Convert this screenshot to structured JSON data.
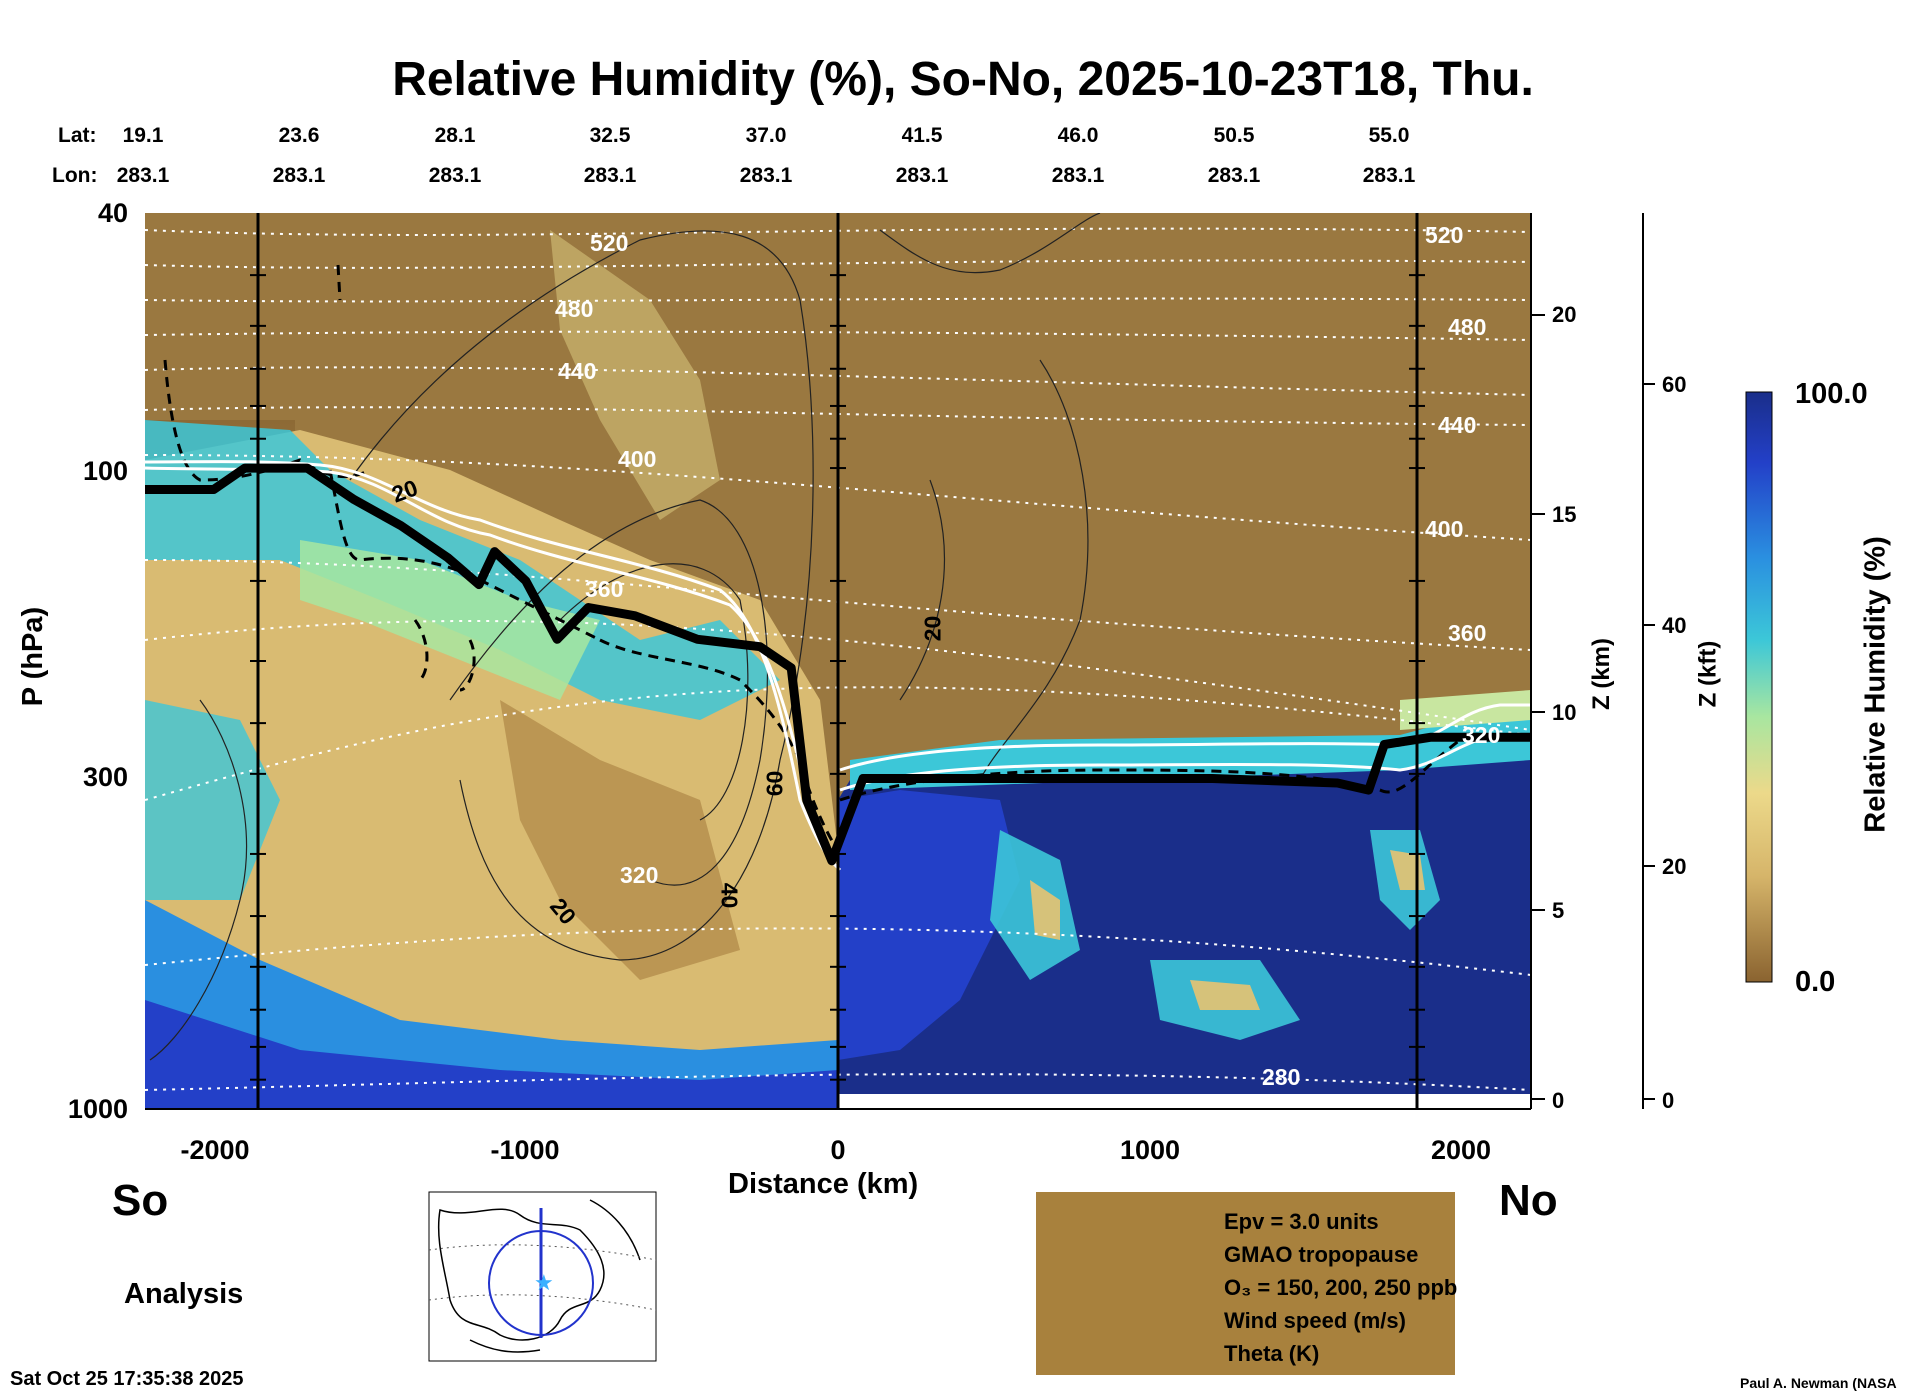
{
  "title": "Relative Humidity (%), So-No, 2025-10-23T18, Thu.",
  "lat_label": "Lat:",
  "lon_label": "Lon:",
  "lats": [
    "19.1",
    "23.6",
    "28.1",
    "32.5",
    "37.0",
    "41.5",
    "46.0",
    "50.5",
    "55.0"
  ],
  "lons": [
    "283.1",
    "283.1",
    "283.1",
    "283.1",
    "283.1",
    "283.1",
    "283.1",
    "283.1",
    "283.1"
  ],
  "direction_left": "So",
  "direction_right": "No",
  "analysis_label": "Analysis",
  "footer_timestamp": "Sat Oct 25 17:35:38 2025",
  "credit": "Paul A. Newman (NASA",
  "colorbar": {
    "title": "Relative Humidity (%)",
    "max_label": "100.0",
    "min_label": "0.0",
    "colors": [
      "#1a2e8a",
      "#2340c8",
      "#2a8fe0",
      "#3cc7d8",
      "#a8e6a0",
      "#ecd98a",
      "#d6b56a",
      "#a8813d",
      "#8a6330"
    ]
  },
  "legend": [
    {
      "label": "Epv = 3.0 units",
      "style": "dashed"
    },
    {
      "label": "GMAO tropopause",
      "style": "thick"
    },
    {
      "label": "O₃ = 150, 200, 250 ppb",
      "style": "white"
    },
    {
      "label": "Wind speed (m/s)",
      "style": "thin"
    },
    {
      "label": "Theta (K)",
      "style": "dotted"
    }
  ],
  "chart_data": {
    "type": "heatmap",
    "title": "Relative Humidity (%), So-No, 2025-10-23T18, Thu.",
    "xlabel": "Distance (km)",
    "ylabel": "P (hPa)",
    "xlim": [
      -2220,
      2220
    ],
    "ylim": [
      1000,
      40
    ],
    "y_scale": "log",
    "x_ticks": [
      -2000,
      -1000,
      0,
      1000,
      2000
    ],
    "x_tick_labels": [
      "-2000",
      "-1000",
      "0",
      "1000",
      "2000"
    ],
    "y_ticks": [
      40,
      100,
      300,
      1000
    ],
    "y_tick_labels": [
      "40",
      "100",
      "300",
      "1000"
    ],
    "z_km_label": "Z (km)",
    "z_km_ticks": [
      "20",
      "15",
      "10",
      "5",
      "0"
    ],
    "z_kft_label": "Z (kft)",
    "z_kft_ticks": [
      "60",
      "40",
      "20",
      "0"
    ],
    "theta_contour_labels": [
      "520",
      "480",
      "440",
      "400",
      "360",
      "320",
      "280",
      "520",
      "480",
      "440",
      "400",
      "360",
      "320"
    ],
    "wind_contour_labels": [
      "20",
      "20",
      "20",
      "40",
      "60"
    ],
    "tropopause": [
      {
        "x": -2220,
        "p": 108
      },
      {
        "x": -2000,
        "p": 108
      },
      {
        "x": -1900,
        "p": 100
      },
      {
        "x": -1700,
        "p": 100
      },
      {
        "x": -1550,
        "p": 112
      },
      {
        "x": -1400,
        "p": 123
      },
      {
        "x": -1250,
        "p": 138
      },
      {
        "x": -1150,
        "p": 152
      },
      {
        "x": -1100,
        "p": 135
      },
      {
        "x": -1000,
        "p": 150
      },
      {
        "x": -900,
        "p": 185
      },
      {
        "x": -800,
        "p": 165
      },
      {
        "x": -650,
        "p": 170
      },
      {
        "x": -450,
        "p": 185
      },
      {
        "x": -250,
        "p": 190
      },
      {
        "x": -150,
        "p": 205
      },
      {
        "x": -100,
        "p": 330
      },
      {
        "x": -20,
        "p": 410
      },
      {
        "x": 80,
        "p": 305
      },
      {
        "x": 600,
        "p": 305
      },
      {
        "x": 1200,
        "p": 305
      },
      {
        "x": 1600,
        "p": 310
      },
      {
        "x": 1700,
        "p": 318
      },
      {
        "x": 1750,
        "p": 270
      },
      {
        "x": 1900,
        "p": 263
      },
      {
        "x": 2220,
        "p": 263
      }
    ],
    "description_cols": "vertical profile columns from south (-2220 km) to north (2220 km)"
  }
}
